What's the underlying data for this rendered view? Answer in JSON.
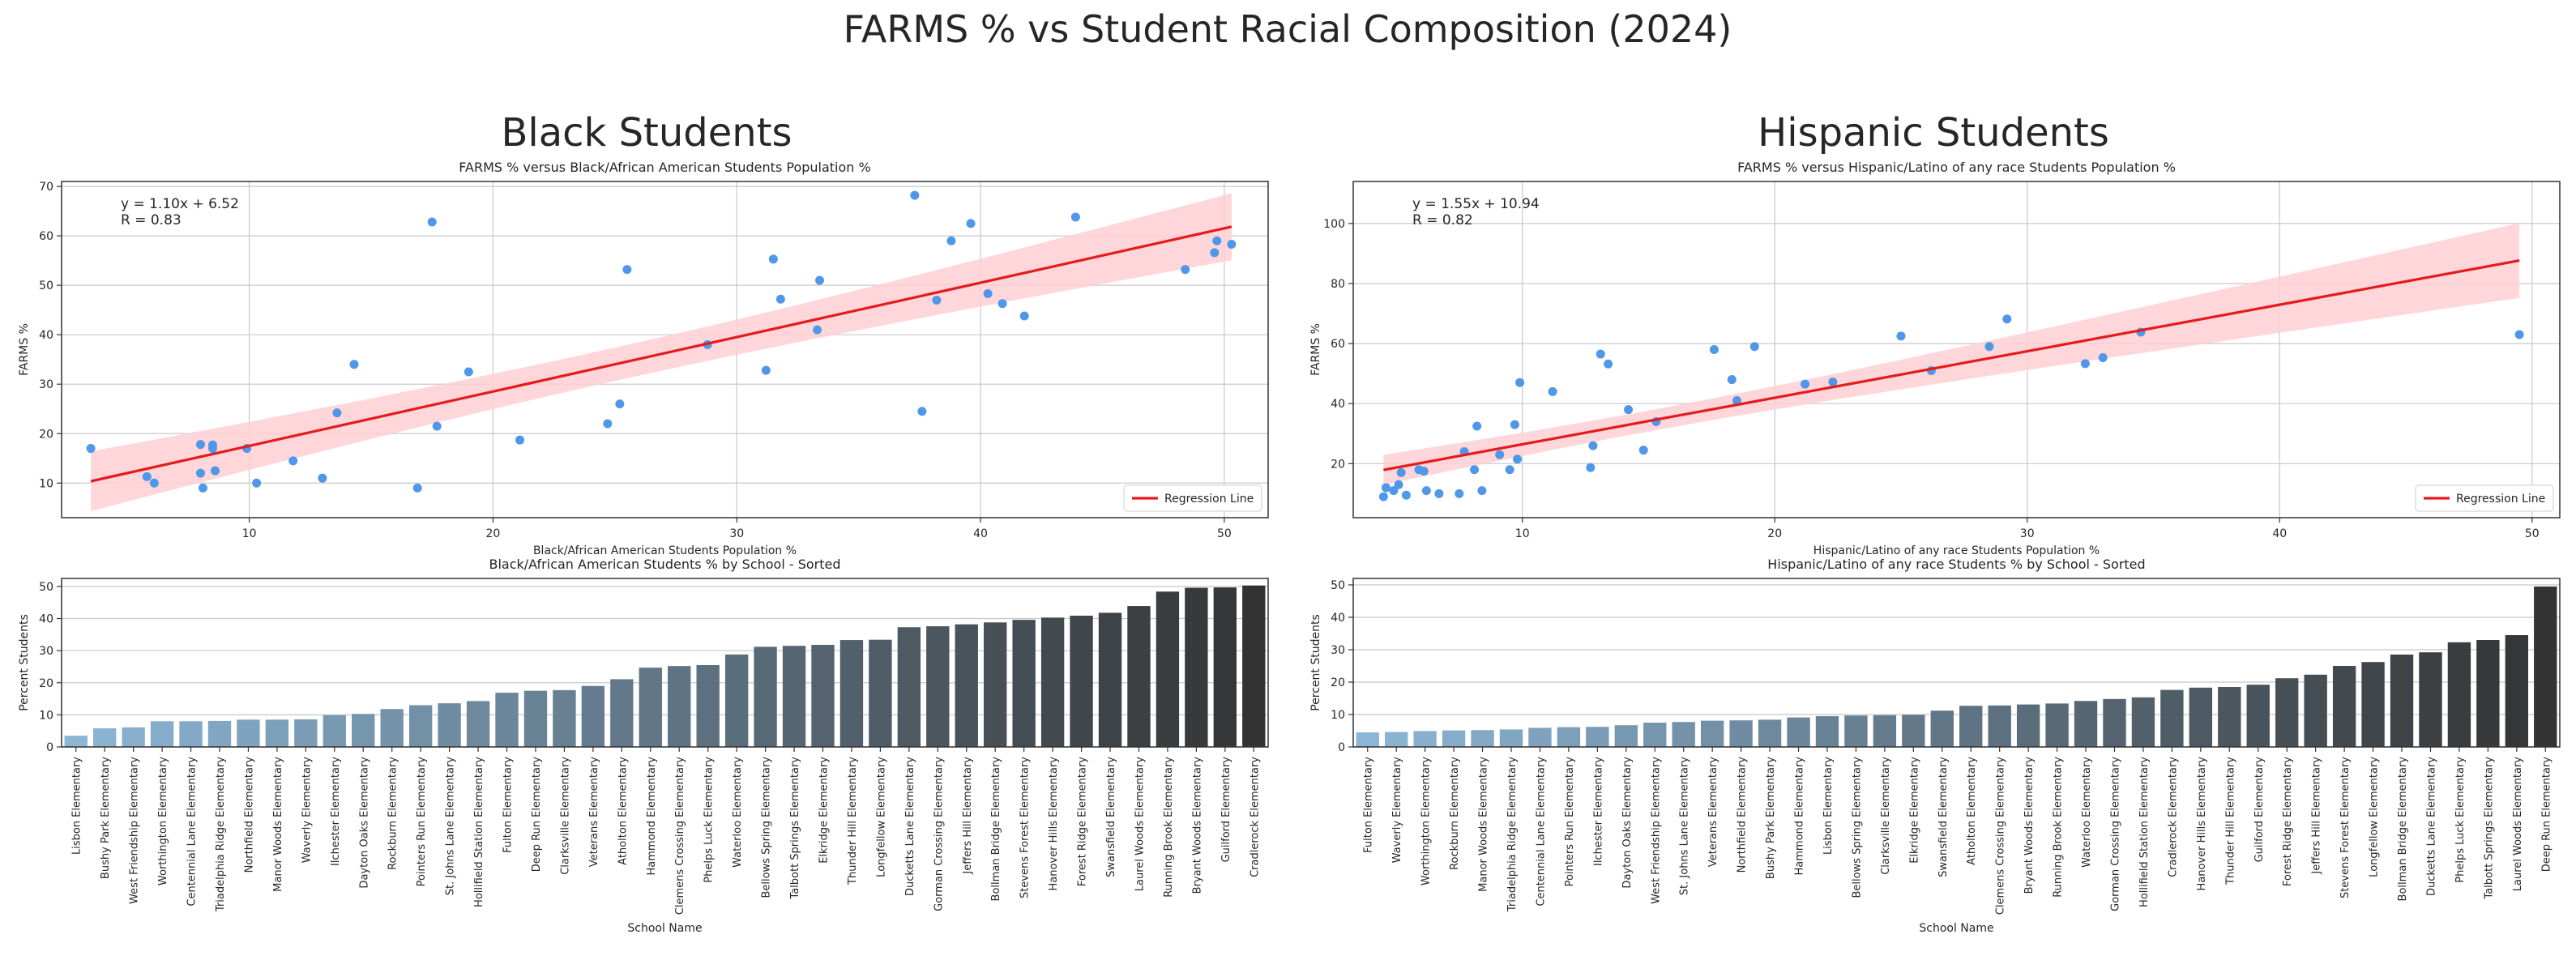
{
  "figure": {
    "title": "FARMS % vs Student Racial Composition (2024)"
  },
  "panels": [
    {
      "heading": "Black Students"
    },
    {
      "heading": "Hispanic Students"
    }
  ],
  "colors": {
    "points": "#4f97e8",
    "regression": "#e41a1c",
    "band": "#ffcfd2",
    "equation": "#d62728",
    "grid": "#c8c8c8",
    "bar_light": "#8cb6d6",
    "bar_dark": "#333333"
  },
  "chart_data": [
    {
      "type": "scatter",
      "title": "FARMS % versus Black/African American Students Population %",
      "xlabel": "Black/African American Students Population %",
      "ylabel": "FARMS %",
      "xlim": [
        2.3,
        51.8
      ],
      "ylim": [
        3,
        71
      ],
      "xticks": [
        10,
        20,
        30,
        40,
        50
      ],
      "yticks": [
        10,
        20,
        30,
        40,
        50,
        60,
        70
      ],
      "grid": true,
      "legend": {
        "position": "lower-right",
        "entries": [
          "Regression Line"
        ]
      },
      "annotation": {
        "equation": "y = 1.10x + 6.52",
        "r": "R = 0.83"
      },
      "regression": {
        "slope": 1.1,
        "intercept": 6.52,
        "x_range": [
          3.5,
          50.3
        ]
      },
      "points": [
        [
          3.5,
          17
        ],
        [
          5.8,
          11.3
        ],
        [
          6.1,
          10
        ],
        [
          8.0,
          17.8
        ],
        [
          8.0,
          12
        ],
        [
          8.1,
          9
        ],
        [
          8.5,
          17.7
        ],
        [
          8.5,
          17
        ],
        [
          8.6,
          12.5
        ],
        [
          9.9,
          17
        ],
        [
          10.3,
          10
        ],
        [
          11.8,
          14.5
        ],
        [
          13.0,
          11
        ],
        [
          13.6,
          24.2
        ],
        [
          14.3,
          34
        ],
        [
          16.9,
          9
        ],
        [
          17.5,
          62.8
        ],
        [
          17.7,
          21.5
        ],
        [
          19.0,
          32.5
        ],
        [
          21.1,
          18.7
        ],
        [
          24.7,
          22
        ],
        [
          25.2,
          26
        ],
        [
          25.5,
          53.2
        ],
        [
          28.8,
          38
        ],
        [
          31.2,
          32.8
        ],
        [
          31.5,
          55.3
        ],
        [
          31.8,
          47.2
        ],
        [
          33.3,
          41
        ],
        [
          33.4,
          51
        ],
        [
          37.3,
          68.2
        ],
        [
          37.6,
          24.5
        ],
        [
          38.2,
          47
        ],
        [
          38.8,
          59
        ],
        [
          39.6,
          62.5
        ],
        [
          40.3,
          48.3
        ],
        [
          40.9,
          46.3
        ],
        [
          41.8,
          43.8
        ],
        [
          43.9,
          63.8
        ],
        [
          48.4,
          53.2
        ],
        [
          49.6,
          56.6
        ],
        [
          49.7,
          59
        ],
        [
          50.3,
          58.3
        ]
      ]
    },
    {
      "type": "scatter",
      "title": "FARMS % versus Hispanic/Latino of any race Students Population %",
      "xlabel": "Hispanic/Latino of any race Students Population %",
      "ylabel": "FARMS %",
      "xlim": [
        3.3,
        51.1
      ],
      "ylim": [
        2,
        114
      ],
      "xticks": [
        10,
        20,
        30,
        40,
        50
      ],
      "yticks": [
        20,
        40,
        60,
        80,
        100
      ],
      "grid": true,
      "legend": {
        "position": "lower-right",
        "entries": [
          "Regression Line"
        ]
      },
      "annotation": {
        "equation": "y = 1.55x + 10.94",
        "r": "R = 0.82"
      },
      "regression": {
        "slope": 1.55,
        "intercept": 10.94,
        "x_range": [
          4.5,
          49.5
        ]
      },
      "points": [
        [
          4.5,
          9
        ],
        [
          4.6,
          12
        ],
        [
          4.9,
          11
        ],
        [
          5.1,
          13
        ],
        [
          5.2,
          17
        ],
        [
          5.4,
          9.5
        ],
        [
          5.9,
          18
        ],
        [
          6.1,
          17.5
        ],
        [
          6.2,
          11
        ],
        [
          6.7,
          10
        ],
        [
          7.5,
          10
        ],
        [
          7.7,
          24
        ],
        [
          8.1,
          18
        ],
        [
          8.2,
          32.5
        ],
        [
          8.4,
          11
        ],
        [
          9.1,
          23
        ],
        [
          9.5,
          18
        ],
        [
          9.7,
          33
        ],
        [
          9.8,
          21.5
        ],
        [
          9.9,
          47
        ],
        [
          11.2,
          44
        ],
        [
          12.7,
          18.7
        ],
        [
          12.8,
          26
        ],
        [
          13.1,
          56.5
        ],
        [
          13.4,
          53.2
        ],
        [
          14.2,
          38
        ],
        [
          14.8,
          24.5
        ],
        [
          15.3,
          34
        ],
        [
          17.6,
          58
        ],
        [
          18.3,
          48
        ],
        [
          18.5,
          41
        ],
        [
          19.2,
          59
        ],
        [
          21.2,
          46.5
        ],
        [
          22.3,
          47.2
        ],
        [
          25.0,
          62.5
        ],
        [
          26.2,
          51
        ],
        [
          28.5,
          59
        ],
        [
          29.2,
          68.2
        ],
        [
          32.3,
          53.3
        ],
        [
          33.0,
          55.3
        ],
        [
          34.5,
          63.8
        ],
        [
          49.5,
          63
        ]
      ]
    },
    {
      "type": "bar",
      "title": "Black/African American Students % by School - Sorted",
      "xlabel": "School Name",
      "ylabel": "Percent Students",
      "ylim": [
        0,
        52.5
      ],
      "yticks": [
        0,
        10,
        20,
        30,
        40,
        50
      ],
      "grid": true,
      "categories": [
        "Lisbon Elementary",
        "Bushy Park Elementary",
        "West Friendship Elementary",
        "Worthington Elementary",
        "Centennial Lane Elementary",
        "Triadelphia Ridge Elementary",
        "Northfield Elementary",
        "Manor Woods Elementary",
        "Waverly Elementary",
        "Ilchester Elementary",
        "Dayton Oaks Elementary",
        "Rockburn Elementary",
        "Pointers Run Elementary",
        "St. Johns Lane Elementary",
        "Hollifield Station Elementary",
        "Fulton Elementary",
        "Deep Run Elementary",
        "Clarksville Elementary",
        "Veterans Elementary",
        "Atholton Elementary",
        "Hammond Elementary",
        "Clemens Crossing Elementary",
        "Phelps Luck Elementary",
        "Waterloo Elementary",
        "Bellows Spring Elementary",
        "Talbott Springs Elementary",
        "Elkridge Elementary",
        "Thunder Hill Elementary",
        "Longfellow Elementary",
        "Ducketts Lane Elementary",
        "Gorman Crossing Elementary",
        "Jeffers Hill Elementary",
        "Bollman Bridge Elementary",
        "Stevens Forest Elementary",
        "Hanover Hills Elementary",
        "Forest Ridge Elementary",
        "Swansfield Elementary",
        "Laurel Woods Elementary",
        "Running Brook Elementary",
        "Bryant Woods Elementary",
        "Guilford Elementary",
        "Cradlerock Elementary"
      ],
      "values": [
        3.5,
        5.8,
        6.1,
        8.0,
        8.0,
        8.1,
        8.5,
        8.5,
        8.6,
        9.9,
        10.3,
        11.8,
        13.0,
        13.6,
        14.3,
        16.9,
        17.5,
        17.7,
        19.0,
        21.1,
        24.7,
        25.2,
        25.5,
        28.8,
        31.2,
        31.5,
        31.8,
        33.3,
        33.4,
        37.3,
        37.6,
        38.2,
        38.8,
        39.6,
        40.3,
        40.9,
        41.8,
        43.9,
        48.4,
        49.6,
        49.7,
        50.3
      ]
    },
    {
      "type": "bar",
      "title": "Hispanic/Latino of any race Students % by School - Sorted",
      "xlabel": "School Name",
      "ylabel": "Percent Students",
      "ylim": [
        0,
        52
      ],
      "yticks": [
        0,
        10,
        20,
        30,
        40,
        50
      ],
      "grid": true,
      "categories": [
        "Fulton Elementary",
        "Waverly Elementary",
        "Worthington Elementary",
        "Rockburn Elementary",
        "Manor Woods Elementary",
        "Triadelphia Ridge Elementary",
        "Centennial Lane Elementary",
        "Pointers Run Elementary",
        "Ilchester Elementary",
        "Dayton Oaks Elementary",
        "West Friendship Elementary",
        "St. Johns Lane Elementary",
        "Veterans Elementary",
        "Northfield Elementary",
        "Bushy Park Elementary",
        "Hammond Elementary",
        "Lisbon Elementary",
        "Bellows Spring Elementary",
        "Clarksville Elementary",
        "Elkridge Elementary",
        "Swansfield Elementary",
        "Atholton Elementary",
        "Clemens Crossing Elementary",
        "Bryant Woods Elementary",
        "Running Brook Elementary",
        "Waterloo Elementary",
        "Gorman Crossing Elementary",
        "Hollifield Station Elementary",
        "Cradlerock Elementary",
        "Hanover Hills Elementary",
        "Thunder Hill Elementary",
        "Guilford Elementary",
        "Forest Ridge Elementary",
        "Jeffers Hill Elementary",
        "Stevens Forest Elementary",
        "Longfellow Elementary",
        "Bollman Bridge Elementary",
        "Ducketts Lane Elementary",
        "Phelps Luck Elementary",
        "Talbott Springs Elementary",
        "Laurel Woods Elementary",
        "Deep Run Elementary"
      ],
      "values": [
        4.5,
        4.6,
        4.9,
        5.1,
        5.2,
        5.4,
        5.9,
        6.1,
        6.2,
        6.7,
        7.5,
        7.7,
        8.1,
        8.2,
        8.4,
        9.1,
        9.5,
        9.7,
        9.8,
        9.9,
        11.2,
        12.7,
        12.8,
        13.1,
        13.4,
        14.2,
        14.8,
        15.3,
        17.6,
        18.3,
        18.5,
        19.2,
        21.2,
        22.3,
        25.0,
        26.2,
        28.5,
        29.2,
        32.3,
        33.0,
        34.5,
        49.5
      ]
    }
  ]
}
